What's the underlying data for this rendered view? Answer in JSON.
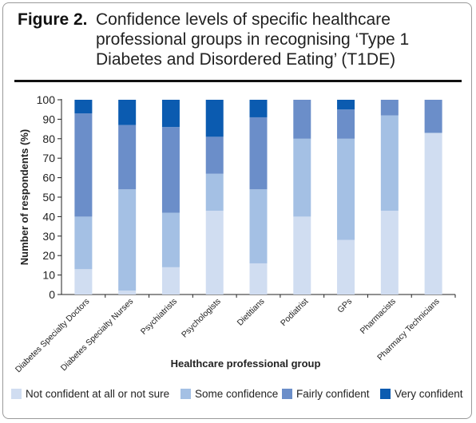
{
  "figure": {
    "label": "Figure 2.",
    "title": "Confidence levels of specific healthcare professional groups in recognising ‘Type 1 Diabetes and Disordered Eating’ (T1DE)"
  },
  "colors": {
    "not_confident": "#d0ddf1",
    "some_confidence": "#a4c0e4",
    "fairly_confident": "#6b8ec9",
    "very_confident": "#0b5bb0"
  },
  "chart_data": {
    "type": "bar",
    "stacked": true,
    "xlabel": "Healthcare professional group",
    "ylabel": "Number of respondents (%)",
    "ylim": [
      0,
      100
    ],
    "yticks": [
      0,
      10,
      20,
      30,
      40,
      50,
      60,
      70,
      80,
      90,
      100
    ],
    "grid": false,
    "legend_position": "bottom",
    "categories": [
      "Diabetes Specialty Doctors",
      "Diabetes Specialty Nurses",
      "Psychiatrists",
      "Psychologists",
      "Dietitians",
      "Podiatrist",
      "GPs",
      "Pharmacists",
      "Pharmacy Technicians"
    ],
    "series": [
      {
        "name": "Not confident at all or not sure",
        "color": "#d0ddf1",
        "values": [
          13,
          2,
          14,
          43,
          16,
          40,
          28,
          43,
          83
        ]
      },
      {
        "name": "Some confidence",
        "color": "#a4c0e4",
        "values": [
          27,
          52,
          28,
          19,
          38,
          40,
          52,
          49,
          0
        ]
      },
      {
        "name": "Fairly confident",
        "color": "#6b8ec9",
        "values": [
          53,
          33,
          44,
          19,
          37,
          20,
          15,
          8,
          17
        ]
      },
      {
        "name": "Very confident",
        "color": "#0b5bb0",
        "values": [
          7,
          13,
          14,
          19,
          9,
          0,
          5,
          0,
          0
        ]
      }
    ]
  }
}
